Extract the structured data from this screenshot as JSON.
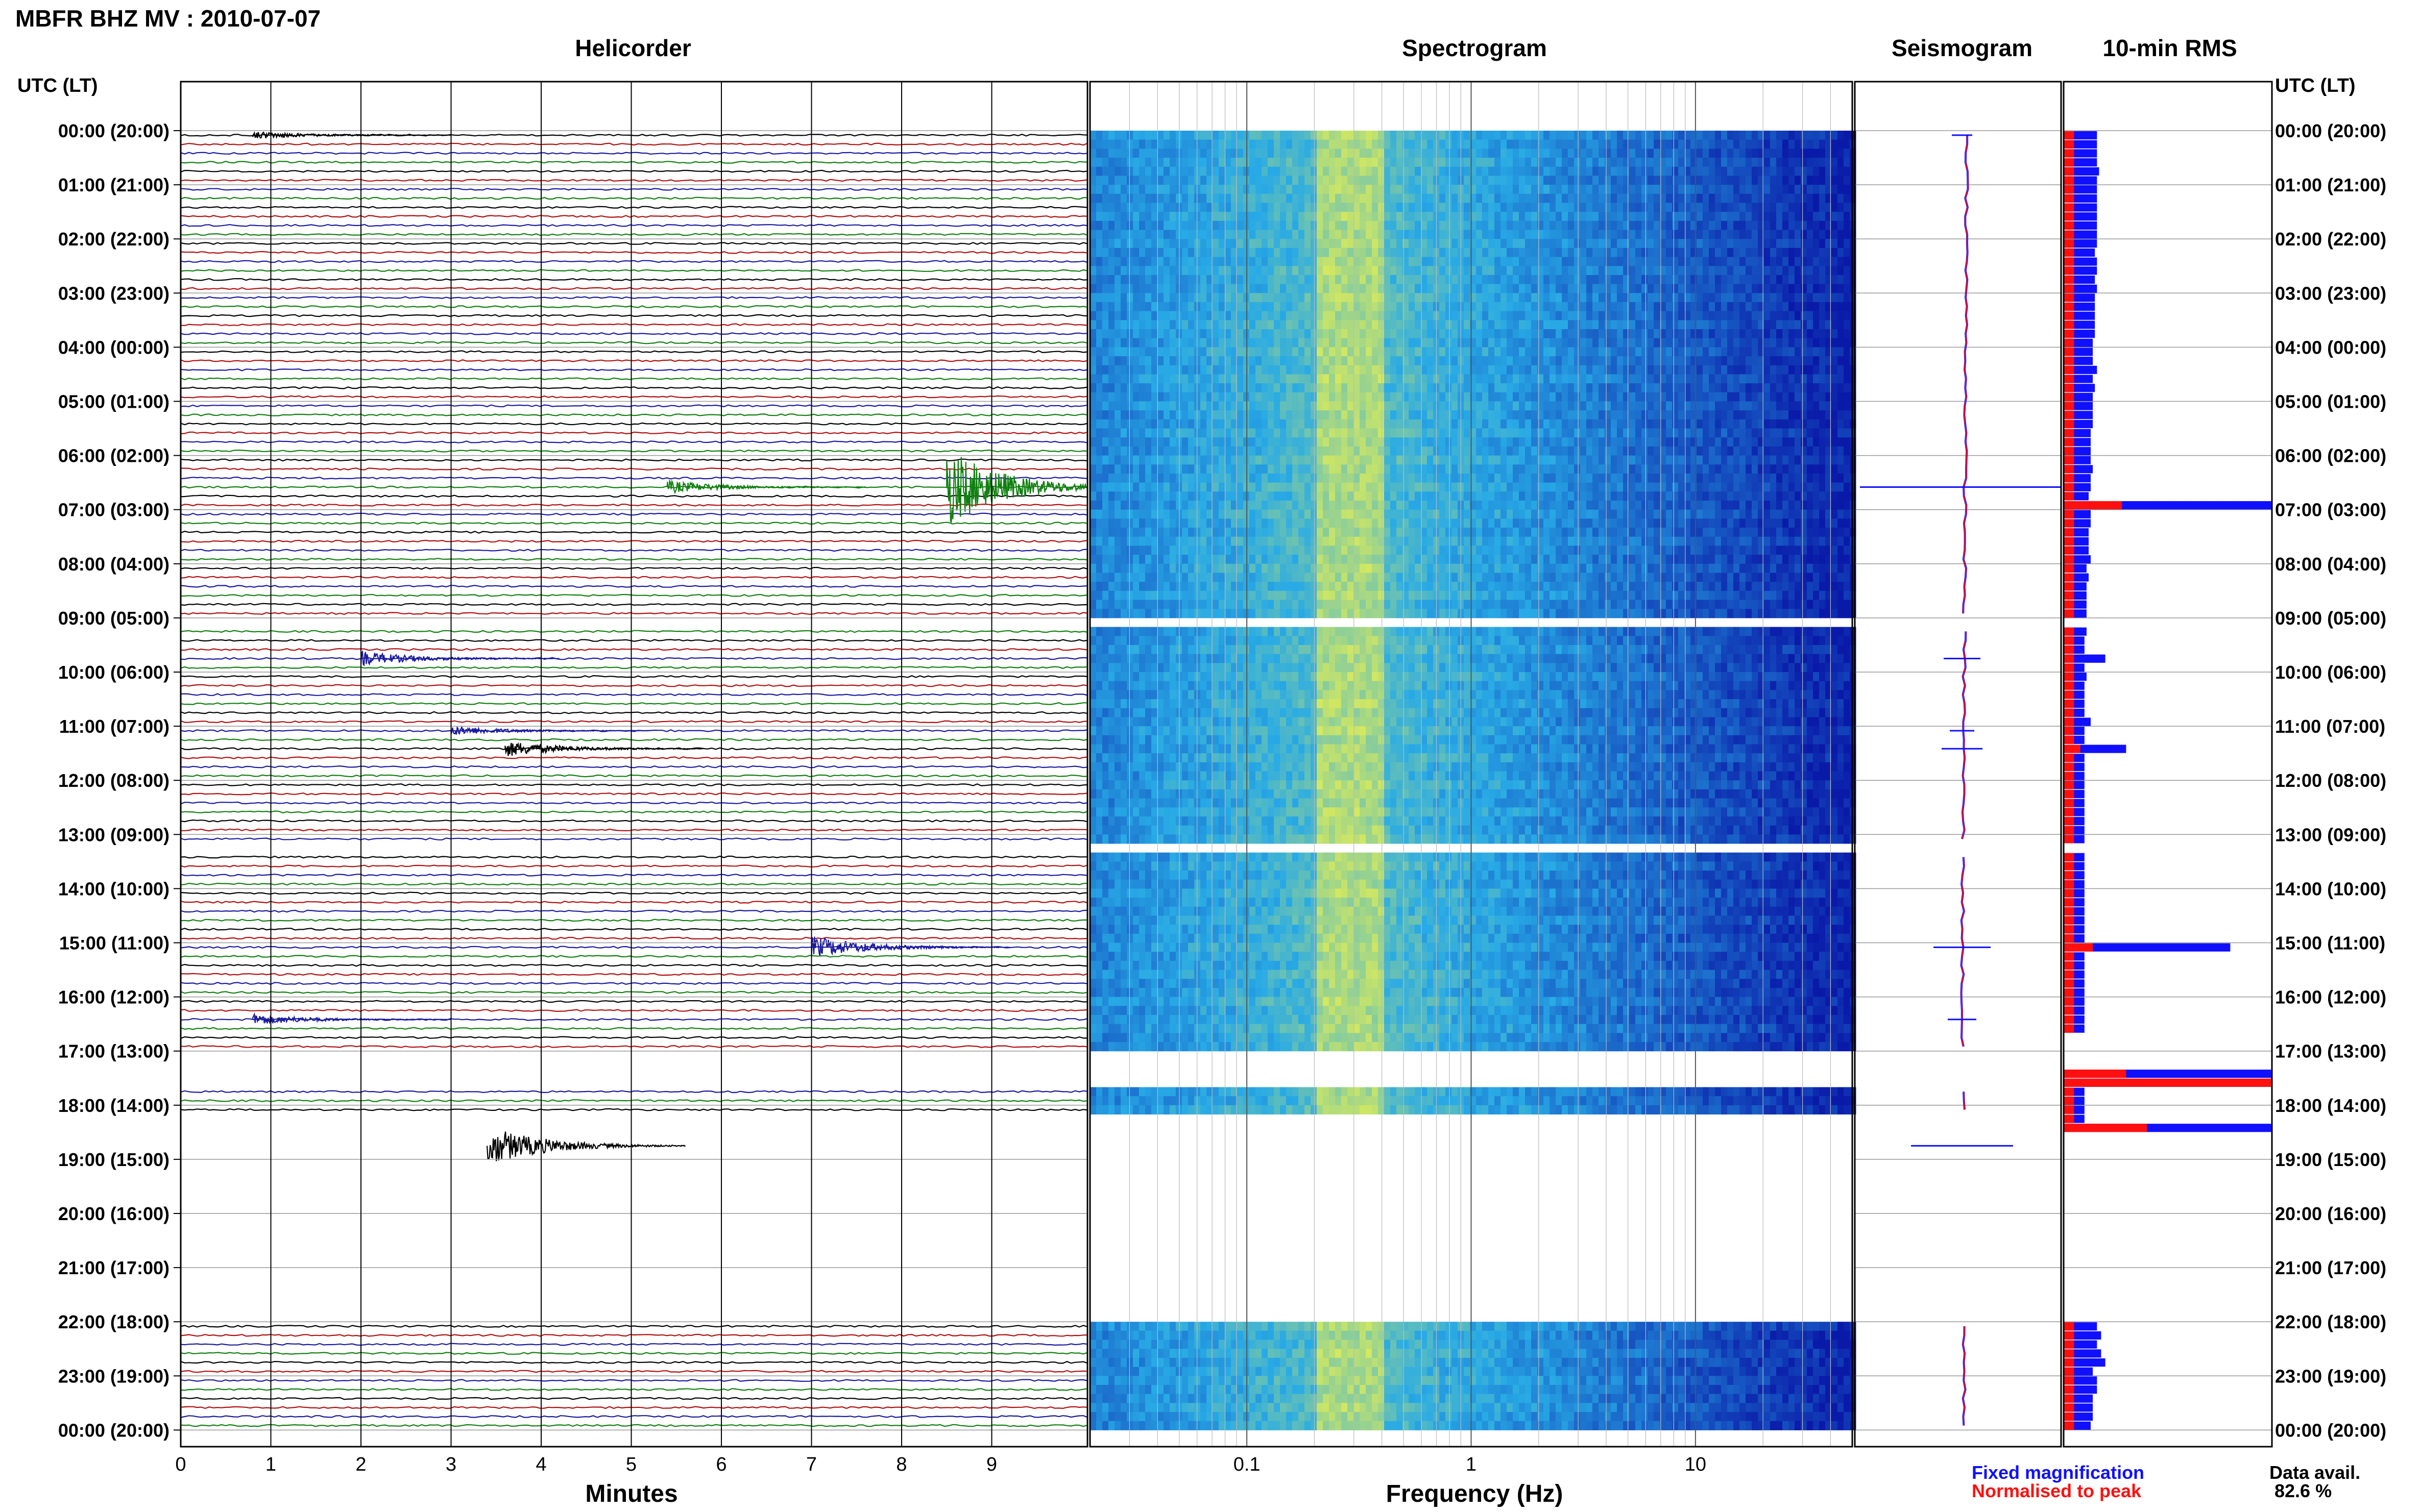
{
  "title": "MBFR BHZ MV : 2010-07-07",
  "panels": {
    "helicorder": "Helicorder",
    "spectrogram": "Spectrogram",
    "seismogram": "Seismogram",
    "rms": "10-min RMS"
  },
  "time_axis": {
    "label_left": "UTC (LT)",
    "label_right": "UTC (LT)",
    "ticks": [
      "00:00 (20:00)",
      "01:00 (21:00)",
      "02:00 (22:00)",
      "03:00 (23:00)",
      "04:00 (00:00)",
      "05:00 (01:00)",
      "06:00 (02:00)",
      "07:00 (03:00)",
      "08:00 (04:00)",
      "09:00 (05:00)",
      "10:00 (06:00)",
      "11:00 (07:00)",
      "12:00 (08:00)",
      "13:00 (09:00)",
      "14:00 (10:00)",
      "15:00 (11:00)",
      "16:00 (12:00)",
      "17:00 (13:00)",
      "18:00 (14:00)",
      "19:00 (15:00)",
      "20:00 (16:00)",
      "21:00 (17:00)",
      "22:00 (18:00)",
      "23:00 (19:00)",
      "00:00 (20:00)"
    ]
  },
  "x_axes": {
    "minutes_label": "Minutes",
    "minutes_ticks": [
      "0",
      "1",
      "2",
      "3",
      "4",
      "5",
      "6",
      "7",
      "8",
      "9"
    ],
    "frequency_label": "Frequency (Hz)",
    "frequency_ticks": [
      "0.1",
      "1",
      "10"
    ]
  },
  "legend": {
    "fixed": "Fixed magnification",
    "normalised": "Normalised to peak",
    "fixed_color": "#1010ff",
    "normalised_color": "#ff1010"
  },
  "data_avail": {
    "label": "Data avail.",
    "value": "82.6 %"
  },
  "colors": {
    "trace_cycle": [
      "#000000",
      "#b01010",
      "#1a1aa0",
      "#108010"
    ],
    "spectrogram_low": "#0a1aa8",
    "spectrogram_high": "#e8f050"
  },
  "chart_data": {
    "type": "heatmap",
    "station": "MBFR",
    "channel": "BHZ",
    "network": "MV",
    "date": "2010-07-07",
    "rows_per_hour": 6,
    "row_minutes": 10,
    "data_gaps_utc": [
      [
        "09:00",
        "09:10"
      ],
      [
        "13:10",
        "13:20"
      ],
      [
        "17:00",
        "17:40"
      ],
      [
        "18:10",
        "22:00"
      ]
    ],
    "events": [
      {
        "utc": "00:00",
        "minute": 0.8,
        "amplitude": 0.5
      },
      {
        "utc": "06:30",
        "minute": 8.5,
        "amplitude": 5.0
      },
      {
        "utc": "06:30",
        "minute": 5.4,
        "amplitude": 0.8
      },
      {
        "utc": "09:40",
        "minute": 2.0,
        "amplitude": 0.9
      },
      {
        "utc": "11:00",
        "minute": 3.0,
        "amplitude": 0.6
      },
      {
        "utc": "11:20",
        "minute": 3.6,
        "amplitude": 1.0
      },
      {
        "utc": "15:00",
        "minute": 7.0,
        "amplitude": 1.4
      },
      {
        "utc": "16:20",
        "minute": 0.8,
        "amplitude": 0.7
      },
      {
        "utc": "18:40",
        "minute": 3.4,
        "amplitude": 2.5
      }
    ],
    "spectrogram": {
      "freq_range_hz": [
        0.02,
        50
      ],
      "log_scale": true,
      "bright_band_hz": [
        0.2,
        0.4
      ]
    },
    "rms_10min": {
      "fixed": [
        0.16,
        0.16,
        0.16,
        0.16,
        0.17,
        0.16,
        0.16,
        0.16,
        0.16,
        0.16,
        0.16,
        0.16,
        0.16,
        0.15,
        0.16,
        0.16,
        0.15,
        0.16,
        0.15,
        0.15,
        0.15,
        0.15,
        0.15,
        0.14,
        0.14,
        0.14,
        0.16,
        0.14,
        0.15,
        0.14,
        0.14,
        0.14,
        0.14,
        0.13,
        0.13,
        0.13,
        0.13,
        0.14,
        0.13,
        0.13,
        0.12,
        1.0,
        0.13,
        0.13,
        0.12,
        0.12,
        0.12,
        0.13,
        0.11,
        0.12,
        0.11,
        0.11,
        0.11,
        0.11,
        0.0,
        0.11,
        0.1,
        0.1,
        0.2,
        0.1,
        0.11,
        0.1,
        0.1,
        0.1,
        0.1,
        0.13,
        0.1,
        0.1,
        0.3,
        0.1,
        0.1,
        0.1,
        0.1,
        0.1,
        0.1,
        0.1,
        0.1,
        0.1,
        0.1,
        0.0,
        0.1,
        0.1,
        0.1,
        0.1,
        0.1,
        0.1,
        0.1,
        0.1,
        0.1,
        0.1,
        0.8,
        0.1,
        0.1,
        0.1,
        0.1,
        0.1,
        0.1,
        0.1,
        0.1,
        0.1,
        0.0,
        0.0,
        0.0,
        0.0,
        1.0,
        1.0,
        0.1,
        0.1,
        0.1,
        0.1,
        1.0,
        0.0,
        0.0,
        0.0,
        0.0,
        0.0,
        0.0,
        0.0,
        0.0,
        0.0,
        0.0,
        0.0,
        0.0,
        0.0,
        0.0,
        0.0,
        0.0,
        0.0,
        0.0,
        0.0,
        0.0,
        0.0,
        0.16,
        0.18,
        0.16,
        0.18,
        0.2,
        0.14,
        0.16,
        0.16,
        0.14,
        0.14,
        0.14,
        0.13,
        0.12,
        0.12
      ],
      "normalised": [
        0.05,
        0.05,
        0.05,
        0.05,
        0.05,
        0.05,
        0.05,
        0.05,
        0.05,
        0.05,
        0.05,
        0.05,
        0.05,
        0.05,
        0.05,
        0.05,
        0.05,
        0.05,
        0.05,
        0.05,
        0.05,
        0.05,
        0.05,
        0.05,
        0.05,
        0.05,
        0.05,
        0.05,
        0.05,
        0.05,
        0.05,
        0.05,
        0.05,
        0.05,
        0.05,
        0.05,
        0.05,
        0.05,
        0.05,
        0.05,
        0.05,
        0.28,
        0.05,
        0.05,
        0.05,
        0.05,
        0.05,
        0.05,
        0.05,
        0.05,
        0.05,
        0.05,
        0.05,
        0.05,
        0.0,
        0.05,
        0.05,
        0.05,
        0.05,
        0.05,
        0.05,
        0.05,
        0.05,
        0.05,
        0.05,
        0.05,
        0.05,
        0.05,
        0.08,
        0.05,
        0.05,
        0.05,
        0.05,
        0.05,
        0.05,
        0.05,
        0.05,
        0.05,
        0.05,
        0.0,
        0.05,
        0.05,
        0.05,
        0.05,
        0.05,
        0.05,
        0.05,
        0.05,
        0.05,
        0.05,
        0.14,
        0.05,
        0.05,
        0.05,
        0.05,
        0.05,
        0.05,
        0.05,
        0.05,
        0.05,
        0.0,
        0.0,
        0.0,
        0.0,
        0.3,
        1.0,
        0.05,
        0.05,
        0.05,
        0.05,
        0.4,
        0.0,
        0.0,
        0.0,
        0.0,
        0.0,
        0.0,
        0.0,
        0.0,
        0.0,
        0.0,
        0.0,
        0.0,
        0.0,
        0.0,
        0.0,
        0.0,
        0.0,
        0.0,
        0.0,
        0.0,
        0.0,
        0.05,
        0.05,
        0.05,
        0.05,
        0.05,
        0.05,
        0.05,
        0.05,
        0.05,
        0.05,
        0.05,
        0.05,
        0.05,
        0.05
      ]
    }
  }
}
